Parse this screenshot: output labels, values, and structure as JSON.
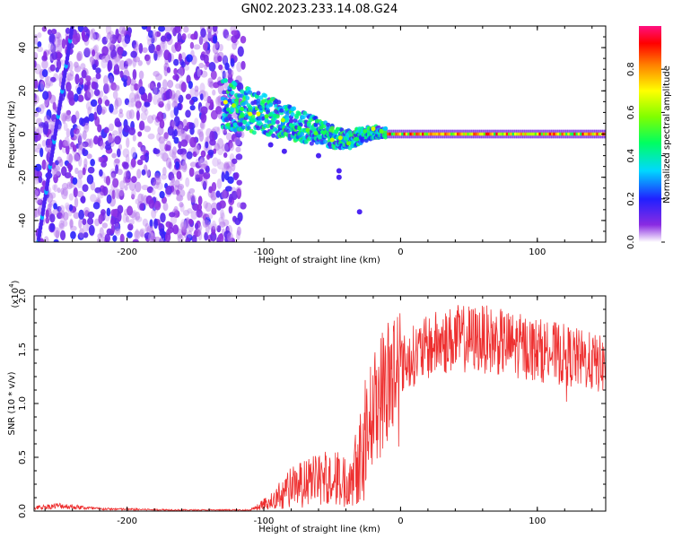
{
  "title": "GN02.2023.233.14.08.G24",
  "colorbar": {
    "label": "Normalized spectral amplitude",
    "ticks": [
      "0.0",
      "0.2",
      "0.4",
      "0.6",
      "0.8"
    ],
    "tick_values": [
      0.0,
      0.2,
      0.4,
      0.6,
      0.8
    ],
    "range": [
      0,
      1
    ]
  },
  "chart_data": [
    {
      "type": "heatmap",
      "xlabel": "Height of straight line (km)",
      "ylabel": "Frequency (Hz)",
      "xlim": [
        -268,
        150
      ],
      "ylim": [
        -50,
        50
      ],
      "x_ticks": [
        -200,
        -100,
        0,
        100
      ],
      "x_tick_labels": [
        "-200",
        "-100",
        "0",
        "100"
      ],
      "y_ticks": [
        -40,
        -20,
        0,
        20,
        40
      ],
      "y_tick_labels": [
        "-40",
        "-20",
        "0",
        "20",
        "40"
      ],
      "colormap": "rainbow",
      "features": {
        "noise_region_x": [
          -268,
          -115
        ],
        "diagonal_trace": {
          "x_start": -265,
          "y_start": -50,
          "x_end": -240,
          "y_end": 50
        },
        "doppler_curve": [
          [
            -130,
            14
          ],
          [
            -110,
            11
          ],
          [
            -95,
            8
          ],
          [
            -80,
            5
          ],
          [
            -65,
            2
          ],
          [
            -50,
            -1
          ],
          [
            -40,
            -3
          ],
          [
            -30,
            -1
          ],
          [
            -20,
            1
          ],
          [
            -10,
            0.5
          ],
          [
            0,
            0
          ],
          [
            150,
            0
          ]
        ]
      }
    },
    {
      "type": "line",
      "xlabel": "Height of straight line (km)",
      "ylabel": "SNR (10 * v/v)",
      "scale_label": "(x10",
      "scale_exp": "4",
      "xlim": [
        -268,
        150
      ],
      "ylim": [
        0,
        2.0
      ],
      "x_ticks": [
        -200,
        -100,
        0,
        100
      ],
      "x_tick_labels": [
        "-200",
        "-100",
        "0",
        "100"
      ],
      "y_ticks": [
        0,
        0.5,
        1.0,
        1.5,
        2.0
      ],
      "y_tick_labels": [
        "0.0",
        "0.5",
        "1.0",
        "1.5",
        "2.0"
      ],
      "series": [
        {
          "color": "#ee3030",
          "envelope": [
            [
              -268,
              0.03
            ],
            [
              -250,
              0.05
            ],
            [
              -220,
              0.02
            ],
            [
              -160,
              0.01
            ],
            [
              -110,
              0.01
            ],
            [
              -95,
              0.1
            ],
            [
              -80,
              0.25
            ],
            [
              -65,
              0.3
            ],
            [
              -50,
              0.35
            ],
            [
              -40,
              0.3
            ],
            [
              -30,
              0.6
            ],
            [
              -20,
              0.95
            ],
            [
              -10,
              1.2
            ],
            [
              0,
              1.35
            ],
            [
              10,
              1.45
            ],
            [
              25,
              1.55
            ],
            [
              40,
              1.6
            ],
            [
              60,
              1.6
            ],
            [
              80,
              1.55
            ],
            [
              100,
              1.5
            ],
            [
              120,
              1.45
            ],
            [
              135,
              1.4
            ],
            [
              150,
              1.35
            ]
          ]
        }
      ]
    }
  ]
}
